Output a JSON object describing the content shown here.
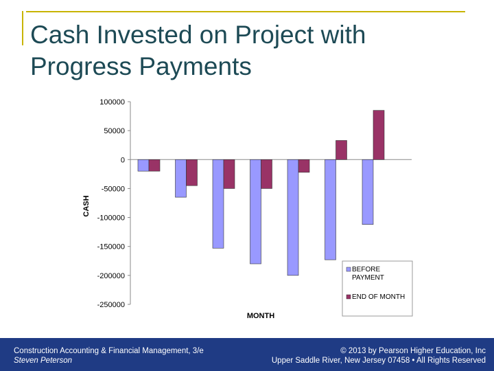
{
  "slide": {
    "title": "Cash Invested on Project with Progress Payments",
    "accent_color": "#c8b400",
    "title_color": "#1d4a55"
  },
  "footer": {
    "background": "#1f3b84",
    "left_line1": "Construction Accounting & Financial Management, 3/e",
    "left_line2": "Steven Peterson",
    "right_line1": "© 2013 by Pearson Higher Education, Inc",
    "right_line2": "Upper Saddle River, New Jersey 07458 • All Rights Reserved"
  },
  "chart_data": {
    "type": "bar",
    "categories": [
      "",
      "",
      "",
      "",
      "",
      "",
      ""
    ],
    "series": [
      {
        "name": "BEFORE PAYMENT",
        "color": "#9999ff",
        "values": [
          -20000,
          -65000,
          -153000,
          -180000,
          -200000,
          -173000,
          -112000
        ]
      },
      {
        "name": "END OF MONTH",
        "color": "#993366",
        "values": [
          -20000,
          -45000,
          -50000,
          -50000,
          -22000,
          33000,
          85000
        ]
      }
    ],
    "xlabel": "MONTH",
    "ylabel": "CASH",
    "ylim": [
      -250000,
      100000
    ],
    "yticks": [
      100000,
      50000,
      0,
      -50000,
      -100000,
      -150000,
      -200000,
      -250000
    ],
    "ytick_labels": [
      "100000",
      "50000",
      "0",
      "-50000",
      "-100000",
      "-150000",
      "-200000",
      "-250000"
    ],
    "legend_position": "bottom-right",
    "grid": false
  }
}
